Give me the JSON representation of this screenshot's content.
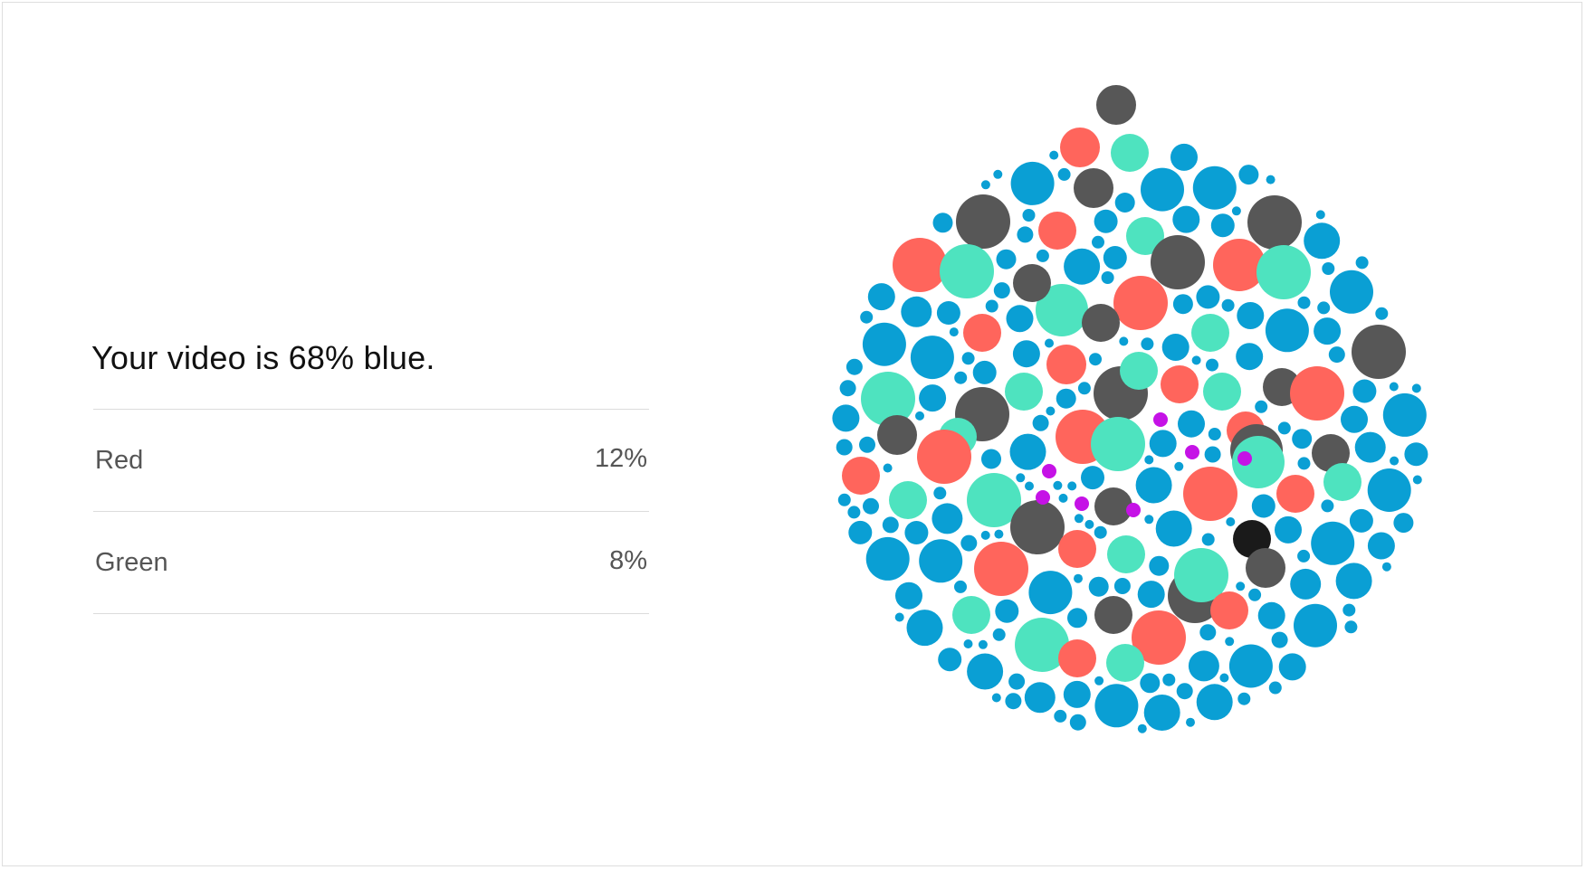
{
  "summary": {
    "headline": "Your video is 68% blue."
  },
  "color_stats": [
    {
      "label": "Red",
      "value": "12%"
    },
    {
      "label": "Green",
      "value": "8%"
    }
  ],
  "palette": {
    "blue": "#0a9fd4",
    "red": "#ff655c",
    "green": "#4ee3bf",
    "gray": "#575757",
    "purple": "#c512e6",
    "black": "#1a1a1a"
  },
  "bubble_cluster": {
    "color_breakdown_percent": {
      "blue": 68,
      "red": 12,
      "green": 8
    }
  }
}
